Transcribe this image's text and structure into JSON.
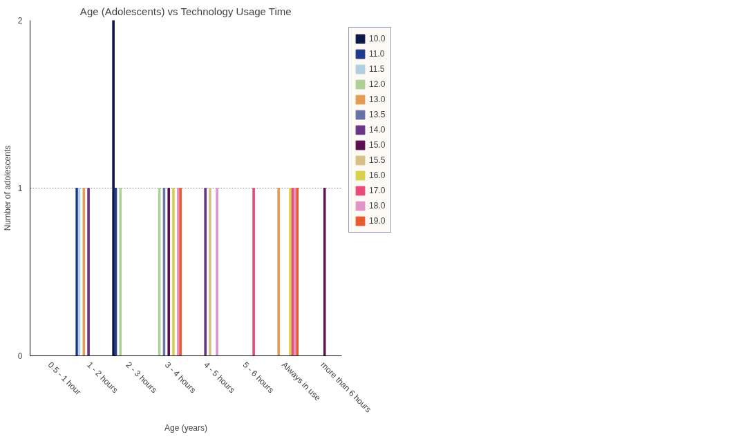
{
  "chart_data": {
    "type": "bar",
    "title": "Age (Adolescents) vs Technology Usage Time",
    "xlabel": "Age (years)",
    "ylabel": "Number of adolescents",
    "categories": [
      "0.5 - 1 hour",
      "1 - 2 hours",
      "2 - 3 hours",
      "3 - 4 hours",
      "4 - 5 hours",
      "5 - 6 hours",
      "Always in use",
      "more than 6 hours"
    ],
    "series": [
      {
        "name": "10.0",
        "color": "#0c1a4a",
        "values": [
          null,
          null,
          2,
          null,
          null,
          null,
          null,
          null
        ]
      },
      {
        "name": "11.0",
        "color": "#1f3a8c",
        "values": [
          null,
          1,
          1,
          null,
          null,
          null,
          null,
          null
        ]
      },
      {
        "name": "11.5",
        "color": "#b0d0e0",
        "values": [
          null,
          1,
          null,
          null,
          null,
          null,
          null,
          null
        ]
      },
      {
        "name": "12.0",
        "color": "#acd095",
        "values": [
          null,
          null,
          1,
          1,
          null,
          null,
          null,
          null
        ]
      },
      {
        "name": "13.0",
        "color": "#e39c55",
        "values": [
          null,
          1,
          null,
          null,
          null,
          null,
          1,
          null
        ]
      },
      {
        "name": "13.5",
        "color": "#6470a8",
        "values": [
          null,
          null,
          null,
          1,
          null,
          null,
          null,
          null
        ]
      },
      {
        "name": "14.0",
        "color": "#6a3587",
        "values": [
          null,
          1,
          null,
          null,
          1,
          null,
          null,
          null
        ]
      },
      {
        "name": "15.0",
        "color": "#5a0f4e",
        "values": [
          null,
          null,
          null,
          1,
          null,
          null,
          null,
          1
        ]
      },
      {
        "name": "15.5",
        "color": "#d6c184",
        "values": [
          null,
          null,
          null,
          null,
          1,
          null,
          null,
          null
        ]
      },
      {
        "name": "16.0",
        "color": "#d8d04a",
        "values": [
          null,
          null,
          null,
          1,
          null,
          null,
          1,
          null
        ]
      },
      {
        "name": "17.0",
        "color": "#e84b78",
        "values": [
          null,
          null,
          null,
          null,
          null,
          1,
          1,
          null
        ]
      },
      {
        "name": "18.0",
        "color": "#e095c8",
        "values": [
          null,
          null,
          null,
          1,
          1,
          null,
          1,
          null
        ]
      },
      {
        "name": "19.0",
        "color": "#e85a2e",
        "values": [
          null,
          null,
          null,
          1,
          null,
          null,
          1,
          null
        ]
      }
    ],
    "ylim": [
      0,
      2
    ],
    "yticks": [
      0,
      1,
      2
    ],
    "grid": "y",
    "legend": "right"
  }
}
